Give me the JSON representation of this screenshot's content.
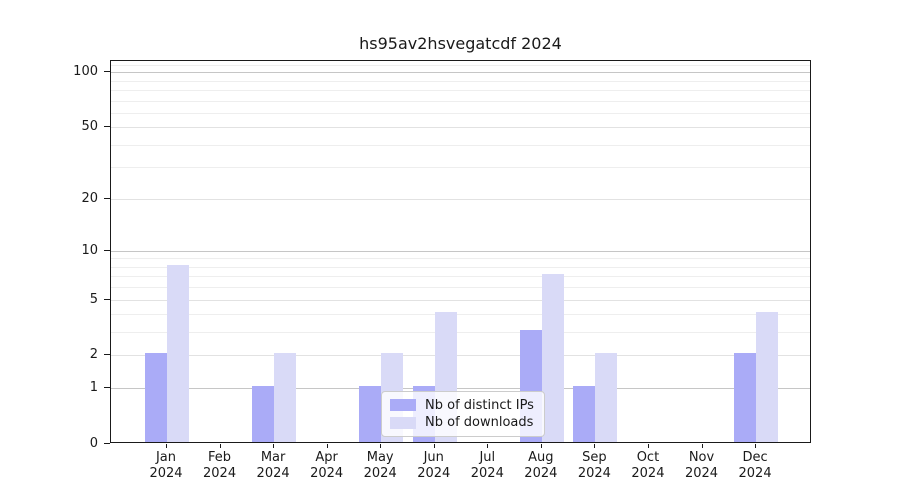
{
  "title": "hs95av2hsvegatcdf 2024",
  "chart_data": {
    "type": "bar",
    "categories": [
      "Jan",
      "Feb",
      "Mar",
      "Apr",
      "May",
      "Jun",
      "Jul",
      "Aug",
      "Sep",
      "Oct",
      "Nov",
      "Dec"
    ],
    "year_label": "2024",
    "series": [
      {
        "name": "Nb of distinct IPs",
        "color": "#aaabf7",
        "values": [
          2,
          0,
          1,
          0,
          1,
          1,
          0,
          3,
          1,
          0,
          0,
          2
        ]
      },
      {
        "name": "Nb of downloads",
        "color": "#d9daf7",
        "values": [
          8,
          0,
          2,
          0,
          2,
          4,
          0,
          7,
          2,
          0,
          0,
          4
        ]
      }
    ],
    "title": "hs95av2hsvegatcdf 2024",
    "xlabel": "",
    "ylabel": "",
    "yscale": "log1p",
    "ylim": [
      0,
      115
    ],
    "yticks": [
      0,
      1,
      2,
      5,
      10,
      20,
      50,
      100
    ],
    "ytick_labels": [
      "0",
      "1",
      "2",
      "5",
      "10",
      "20",
      "50",
      "100"
    ],
    "minor_gridline_values": [
      3,
      4,
      6,
      7,
      8,
      9,
      30,
      40,
      60,
      70,
      80,
      90,
      110
    ],
    "grid": true,
    "legend_position": "lower-center",
    "colors": {
      "decade_gridline": "#c6c6c6",
      "major_gridline": "#e2e2e2",
      "minor_gridline": "#eeeeee",
      "axis": "#1a1a1a",
      "background": "#ffffff"
    }
  }
}
